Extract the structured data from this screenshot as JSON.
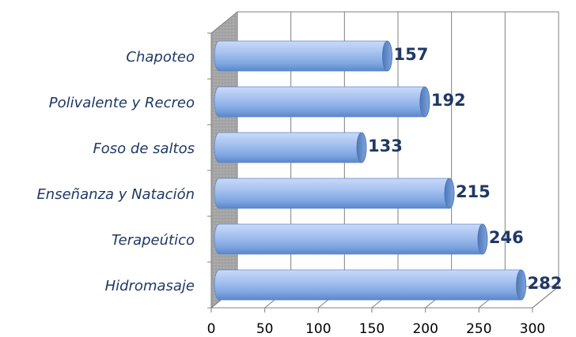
{
  "chart_data": {
    "type": "bar",
    "orientation": "horizontal",
    "categories": [
      "Chapoteo",
      "Polivalente y Recreo",
      "Foso de saltos",
      "Enseñanza y Natación",
      "Terapeútico",
      "Hidromasaje"
    ],
    "values": [
      157,
      192,
      133,
      215,
      246,
      282
    ],
    "data_labels": [
      "157",
      "192",
      "133",
      "215",
      "246",
      "282"
    ],
    "x_ticks": [
      "0",
      "50",
      "100",
      "150",
      "200",
      "250",
      "300"
    ],
    "xlim": [
      0,
      300
    ],
    "grid": true,
    "legend": "none",
    "style": "3d-cylinder",
    "colors": {
      "bar_light": "#c9daf8",
      "bar_mid": "#8eb4ea",
      "bar_dark": "#5b86c8",
      "bar_cap": "#6f96d2",
      "label": "#1f3864",
      "wall": "#a6a6a6"
    }
  }
}
